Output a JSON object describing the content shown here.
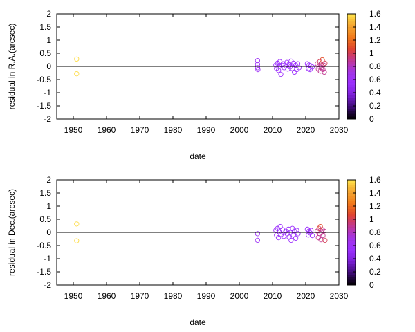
{
  "chart_data": [
    {
      "type": "scatter",
      "xlabel": "date",
      "ylabel": "residual in R.A.(arcsec)",
      "xlim": [
        1945,
        2030
      ],
      "ylim": [
        -2,
        2
      ],
      "xticks": [
        "1950",
        "1960",
        "1970",
        "1980",
        "1990",
        "2000",
        "2010",
        "2020",
        "2030"
      ],
      "yticks": [
        "-2",
        "-1.5",
        "-1",
        "-0.5",
        "0",
        "0.5",
        "1",
        "1.5",
        "2"
      ],
      "grid": false,
      "zero_line": true,
      "colorbar": {
        "range": [
          0,
          1.6
        ],
        "ticks": [
          "0",
          "0.2",
          "0.4",
          "0.6",
          "0.8",
          "1",
          "1.2",
          "1.4",
          "1.6"
        ],
        "palette": [
          "#000000",
          "#3a0a6e",
          "#7a1fd4",
          "#9b30ff",
          "#a335e8",
          "#c0389a",
          "#e0442f",
          "#f27a1a",
          "#f5a630",
          "#ffe34a"
        ]
      },
      "points": [
        {
          "x": 1951.0,
          "y": 0.28,
          "c": 1.58
        },
        {
          "x": 1951.0,
          "y": -0.28,
          "c": 1.58
        },
        {
          "x": 2005.5,
          "y": 0.22,
          "c": 0.6
        },
        {
          "x": 2005.5,
          "y": 0.08,
          "c": 0.6
        },
        {
          "x": 2005.5,
          "y": -0.05,
          "c": 0.6
        },
        {
          "x": 2005.6,
          "y": -0.12,
          "c": 0.6
        },
        {
          "x": 2011.0,
          "y": 0.05,
          "c": 0.55
        },
        {
          "x": 2011.2,
          "y": -0.08,
          "c": 0.55
        },
        {
          "x": 2011.5,
          "y": 0.12,
          "c": 0.55
        },
        {
          "x": 2011.8,
          "y": -0.15,
          "c": 0.55
        },
        {
          "x": 2012.0,
          "y": 0.0,
          "c": 0.55
        },
        {
          "x": 2012.2,
          "y": 0.18,
          "c": 0.55
        },
        {
          "x": 2012.5,
          "y": -0.3,
          "c": 0.55
        },
        {
          "x": 2012.8,
          "y": 0.05,
          "c": 0.55
        },
        {
          "x": 2013.2,
          "y": 0.1,
          "c": 0.55
        },
        {
          "x": 2013.5,
          "y": -0.05,
          "c": 0.55
        },
        {
          "x": 2014.0,
          "y": 0.02,
          "c": 0.55
        },
        {
          "x": 2014.3,
          "y": 0.15,
          "c": 0.55
        },
        {
          "x": 2014.6,
          "y": -0.1,
          "c": 0.55
        },
        {
          "x": 2015.0,
          "y": 0.08,
          "c": 0.55
        },
        {
          "x": 2015.3,
          "y": -0.02,
          "c": 0.55
        },
        {
          "x": 2015.6,
          "y": 0.2,
          "c": 0.55
        },
        {
          "x": 2016.0,
          "y": -0.08,
          "c": 0.55
        },
        {
          "x": 2016.3,
          "y": 0.12,
          "c": 0.55
        },
        {
          "x": 2016.6,
          "y": -0.22,
          "c": 0.55
        },
        {
          "x": 2017.0,
          "y": 0.05,
          "c": 0.55
        },
        {
          "x": 2017.3,
          "y": -0.12,
          "c": 0.55
        },
        {
          "x": 2017.6,
          "y": 0.1,
          "c": 0.55
        },
        {
          "x": 2018.0,
          "y": -0.05,
          "c": 0.55
        },
        {
          "x": 2020.5,
          "y": 0.1,
          "c": 0.55
        },
        {
          "x": 2020.8,
          "y": -0.08,
          "c": 0.55
        },
        {
          "x": 2021.0,
          "y": 0.05,
          "c": 0.55
        },
        {
          "x": 2021.3,
          "y": -0.12,
          "c": 0.55
        },
        {
          "x": 2021.6,
          "y": 0.02,
          "c": 0.55
        },
        {
          "x": 2022.0,
          "y": -0.02,
          "c": 0.55
        },
        {
          "x": 2023.5,
          "y": 0.1,
          "c": 0.9
        },
        {
          "x": 2023.8,
          "y": -0.1,
          "c": 0.9
        },
        {
          "x": 2024.0,
          "y": 0.0,
          "c": 0.9
        },
        {
          "x": 2024.2,
          "y": 0.18,
          "c": 1.0
        },
        {
          "x": 2024.4,
          "y": -0.18,
          "c": 0.9
        },
        {
          "x": 2024.6,
          "y": 0.08,
          "c": 0.9
        },
        {
          "x": 2024.8,
          "y": -0.05,
          "c": 0.9
        },
        {
          "x": 2025.0,
          "y": 0.25,
          "c": 1.1
        },
        {
          "x": 2025.2,
          "y": -0.12,
          "c": 0.9
        },
        {
          "x": 2025.4,
          "y": 0.05,
          "c": 0.9
        },
        {
          "x": 2025.6,
          "y": -0.22,
          "c": 0.9
        },
        {
          "x": 2025.8,
          "y": 0.12,
          "c": 1.0
        }
      ]
    },
    {
      "type": "scatter",
      "xlabel": "date",
      "ylabel": "residual in Dec.(arcsec)",
      "xlim": [
        1945,
        2030
      ],
      "ylim": [
        -2,
        2
      ],
      "xticks": [
        "1950",
        "1960",
        "1970",
        "1980",
        "1990",
        "2000",
        "2010",
        "2020",
        "2030"
      ],
      "yticks": [
        "-2",
        "-1.5",
        "-1",
        "-0.5",
        "0",
        "0.5",
        "1",
        "1.5",
        "2"
      ],
      "grid": false,
      "zero_line": true,
      "colorbar": {
        "range": [
          0,
          1.6
        ],
        "ticks": [
          "0",
          "0.2",
          "0.4",
          "0.6",
          "0.8",
          "1",
          "1.2",
          "1.4",
          "1.6"
        ],
        "palette": [
          "#000000",
          "#3a0a6e",
          "#7a1fd4",
          "#9b30ff",
          "#a335e8",
          "#c0389a",
          "#e0442f",
          "#f27a1a",
          "#f5a630",
          "#ffe34a"
        ]
      },
      "points": [
        {
          "x": 1951.0,
          "y": 0.32,
          "c": 1.58
        },
        {
          "x": 1951.0,
          "y": -0.32,
          "c": 1.58
        },
        {
          "x": 2005.5,
          "y": -0.05,
          "c": 0.6
        },
        {
          "x": 2005.5,
          "y": -0.3,
          "c": 0.6
        },
        {
          "x": 2011.0,
          "y": 0.08,
          "c": 0.55
        },
        {
          "x": 2011.2,
          "y": -0.1,
          "c": 0.55
        },
        {
          "x": 2011.5,
          "y": 0.15,
          "c": 0.55
        },
        {
          "x": 2011.8,
          "y": -0.2,
          "c": 0.55
        },
        {
          "x": 2012.0,
          "y": 0.02,
          "c": 0.55
        },
        {
          "x": 2012.3,
          "y": 0.22,
          "c": 0.55
        },
        {
          "x": 2012.6,
          "y": -0.08,
          "c": 0.55
        },
        {
          "x": 2013.0,
          "y": 0.1,
          "c": 0.55
        },
        {
          "x": 2013.4,
          "y": -0.15,
          "c": 0.55
        },
        {
          "x": 2014.0,
          "y": 0.05,
          "c": 0.55
        },
        {
          "x": 2014.4,
          "y": -0.05,
          "c": 0.55
        },
        {
          "x": 2014.8,
          "y": 0.12,
          "c": 0.55
        },
        {
          "x": 2015.0,
          "y": -0.18,
          "c": 0.55
        },
        {
          "x": 2015.3,
          "y": 0.0,
          "c": 0.55
        },
        {
          "x": 2015.6,
          "y": -0.3,
          "c": 0.55
        },
        {
          "x": 2016.0,
          "y": 0.15,
          "c": 0.55
        },
        {
          "x": 2016.3,
          "y": -0.1,
          "c": 0.55
        },
        {
          "x": 2016.6,
          "y": 0.05,
          "c": 0.55
        },
        {
          "x": 2017.0,
          "y": -0.22,
          "c": 0.55
        },
        {
          "x": 2017.3,
          "y": 0.08,
          "c": 0.55
        },
        {
          "x": 2017.7,
          "y": -0.05,
          "c": 0.55
        },
        {
          "x": 2020.5,
          "y": 0.12,
          "c": 0.55
        },
        {
          "x": 2020.8,
          "y": -0.1,
          "c": 0.55
        },
        {
          "x": 2021.0,
          "y": 0.05,
          "c": 0.55
        },
        {
          "x": 2021.3,
          "y": -0.02,
          "c": 0.55
        },
        {
          "x": 2021.6,
          "y": 0.08,
          "c": 0.55
        },
        {
          "x": 2022.0,
          "y": -0.12,
          "c": 0.55
        },
        {
          "x": 2023.5,
          "y": 0.05,
          "c": 0.9
        },
        {
          "x": 2023.8,
          "y": -0.2,
          "c": 0.9
        },
        {
          "x": 2024.0,
          "y": 0.15,
          "c": 1.0
        },
        {
          "x": 2024.2,
          "y": -0.05,
          "c": 0.9
        },
        {
          "x": 2024.4,
          "y": 0.22,
          "c": 1.1
        },
        {
          "x": 2024.6,
          "y": -0.28,
          "c": 0.9
        },
        {
          "x": 2024.8,
          "y": 0.0,
          "c": 0.9
        },
        {
          "x": 2025.0,
          "y": 0.1,
          "c": 0.9
        },
        {
          "x": 2025.2,
          "y": -0.12,
          "c": 0.9
        },
        {
          "x": 2025.5,
          "y": 0.05,
          "c": 0.9
        },
        {
          "x": 2025.8,
          "y": -0.3,
          "c": 1.0
        }
      ]
    }
  ]
}
